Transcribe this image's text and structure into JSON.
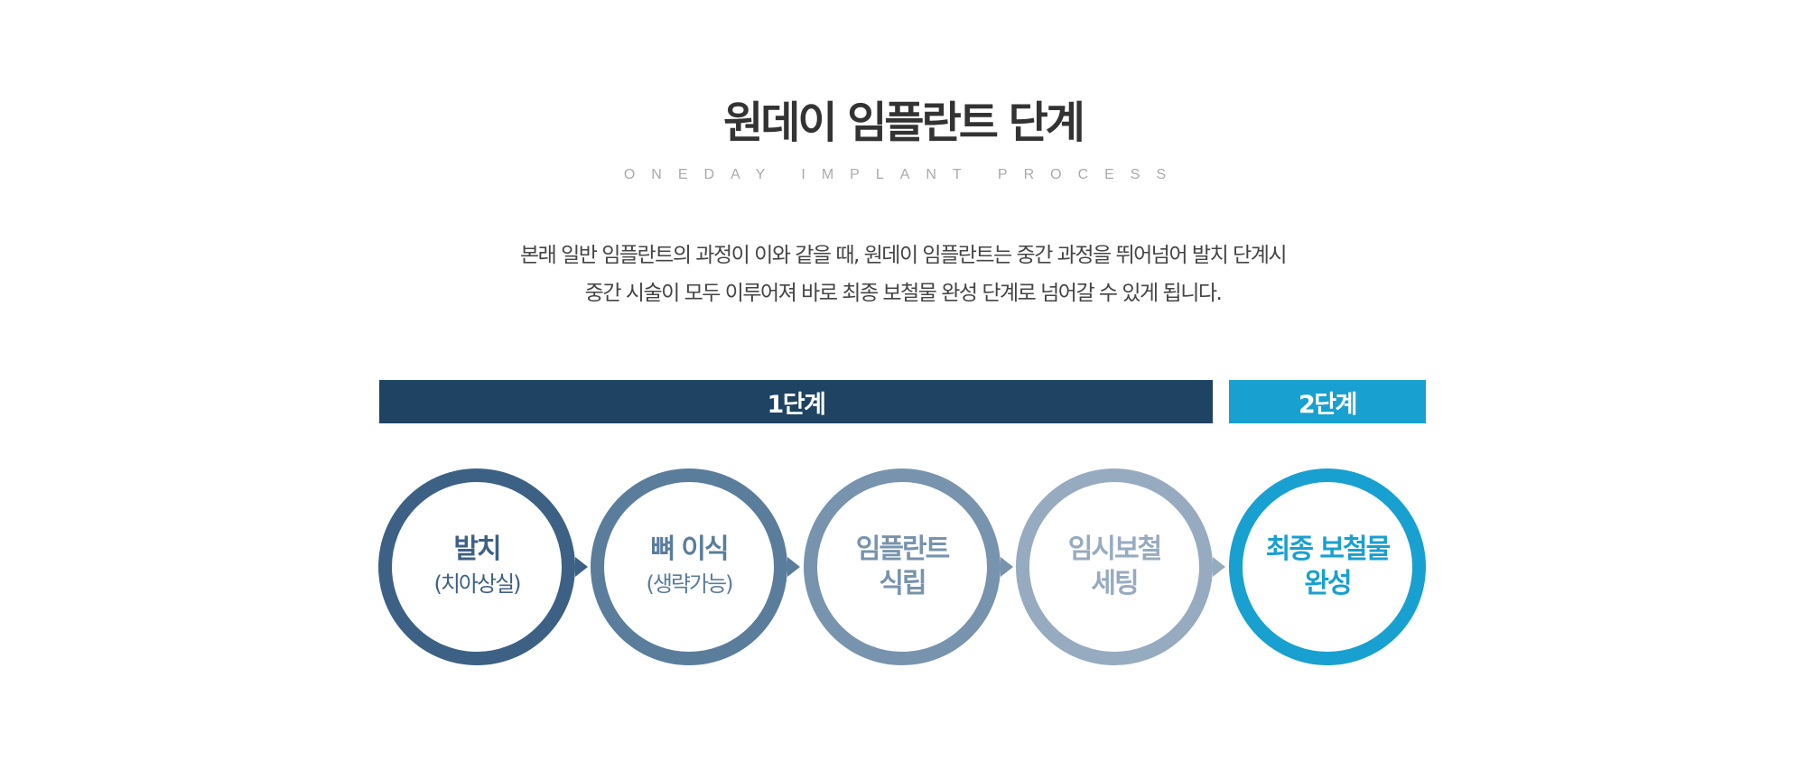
{
  "title": "원데이 임플란트 단계",
  "subtitle": "ONEDAY IMPLANT PROCESS",
  "description": [
    "본래 일반 임플란트의 과정이 이와 같을 때, 원데이 임플란트는 중간 과정을 뛰어넘어 발치 단계시",
    "중간 시술이 모두 이루어져 바로 최종 보철물 완성 단계로 넘어갈 수 있게 됩니다."
  ],
  "stages": [
    {
      "label": "1단계",
      "color": "#1e4363"
    },
    {
      "label": "2단계",
      "color": "#18a0d0"
    }
  ],
  "steps": [
    {
      "main": "발치",
      "sub": "(치아상실)",
      "color": "#3d6185"
    },
    {
      "main": "뼈 이식",
      "sub": "(생략가능)",
      "color": "#5a7d9c"
    },
    {
      "main": "임플란트",
      "sub": "식립",
      "color": "#7893ad"
    },
    {
      "main": "임시보철",
      "sub": "세팅",
      "color": "#97abc0"
    },
    {
      "main": "최종 보철물",
      "sub": "완성",
      "color": "#18a0d0"
    }
  ]
}
